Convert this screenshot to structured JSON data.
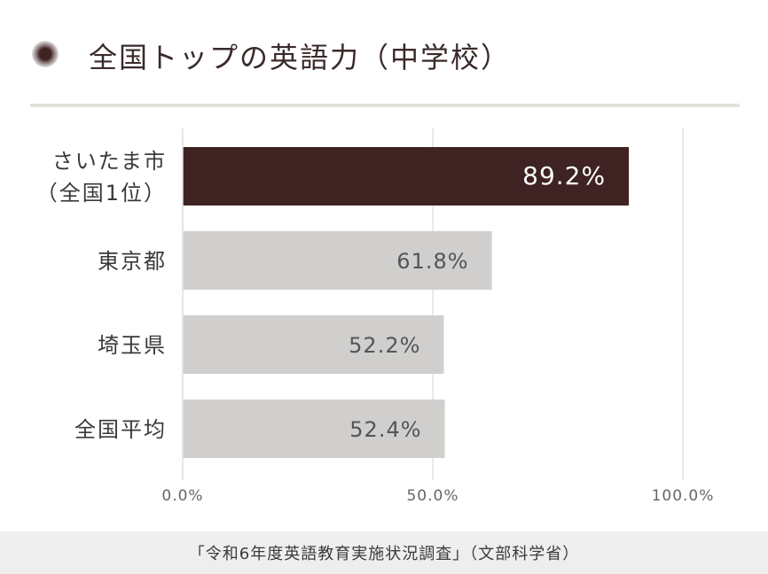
{
  "header": {
    "title": "全国トップの英語力（中学校）"
  },
  "footer": {
    "source": "「令和6年度英語教育実施状況調査」（文部科学省）"
  },
  "colors": {
    "highlight": "#3f2222",
    "bar": "#d0cfcd",
    "grid": "#e2e2e2",
    "highlight_label": "#ffffff",
    "label": "#555555"
  },
  "chart_data": {
    "type": "bar",
    "orientation": "horizontal",
    "categories": [
      {
        "lines": [
          "さいたま市",
          "（全国1位）"
        ],
        "value": 89.2,
        "label": "89.2%",
        "highlight": true
      },
      {
        "lines": [
          "東京都"
        ],
        "value": 61.8,
        "label": "61.8%",
        "highlight": false
      },
      {
        "lines": [
          "埼玉県"
        ],
        "value": 52.2,
        "label": "52.2%",
        "highlight": false
      },
      {
        "lines": [
          "全国平均"
        ],
        "value": 52.4,
        "label": "52.4%",
        "highlight": false
      }
    ],
    "xlim": [
      0,
      100
    ],
    "xticks": [
      {
        "value": 0,
        "label": "0.0%"
      },
      {
        "value": 50,
        "label": "50.0%"
      },
      {
        "value": 100,
        "label": "100.0%"
      }
    ],
    "grid": true
  }
}
